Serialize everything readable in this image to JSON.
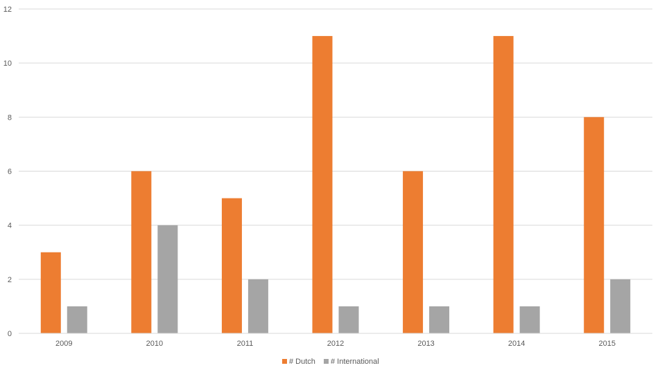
{
  "chart_data": {
    "type": "bar",
    "title": "",
    "xlabel": "",
    "ylabel": "",
    "categories": [
      "2009",
      "2010",
      "2011",
      "2012",
      "2013",
      "2014",
      "2015"
    ],
    "series": [
      {
        "name": "# Dutch",
        "color": "#ED7D31",
        "values": [
          3,
          6,
          5,
          11,
          6,
          11,
          8
        ]
      },
      {
        "name": "# International",
        "color": "#A5A5A5",
        "values": [
          1,
          4,
          2,
          1,
          1,
          1,
          2
        ]
      }
    ],
    "ylim": [
      0,
      12
    ],
    "yticks": [
      "0",
      "2",
      "4",
      "6",
      "8",
      "10",
      "12"
    ],
    "grid": true,
    "legend_position": "bottom"
  }
}
